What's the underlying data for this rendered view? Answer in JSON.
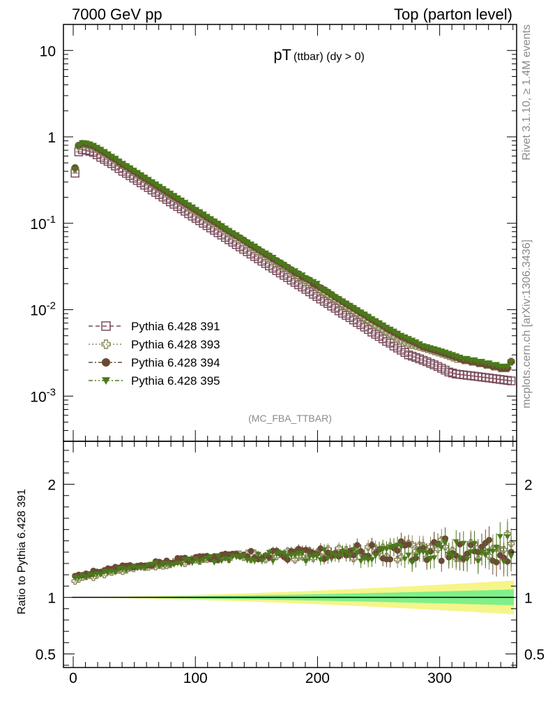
{
  "header": {
    "left": "7000 GeV pp",
    "right": "Top (parton level)"
  },
  "side_text": {
    "rivet": "Rivet 3.1.10, ≥ 1.4M events",
    "mcplots": "mcplots.cern.ch [arXiv:1306.3436]"
  },
  "chart_data": [
    {
      "type": "scatter",
      "title_main": "pT",
      "title_sub": "(ttbar) (dy > 0)",
      "analysis_label": "(MC_FBA_TTBAR)",
      "xlabel": "",
      "ylabel": "",
      "xlim": [
        -8,
        363
      ],
      "ylim": [
        0.0003,
        20
      ],
      "log_y": true,
      "y_tick_labels": [
        "10^{-3}",
        "10^{-2}",
        "10^{-1}",
        "1",
        "10"
      ],
      "legend_position": "lower-left",
      "x": [
        1.5,
        4.5,
        7.5,
        10.5,
        13.5,
        16.5,
        19.5,
        22.5,
        25.5,
        28.5,
        31.5,
        34.5,
        37.5,
        40.5,
        43.5,
        46.5,
        49.5,
        52.5,
        55.5,
        58.5,
        61.5,
        64.5,
        67.5,
        70.5,
        73.5,
        76.5,
        79.5,
        82.5,
        85.5,
        88.5,
        91.5,
        94.5,
        97.5,
        100.5,
        103.5,
        106.5,
        109.5,
        112.5,
        115.5,
        118.5,
        121.5,
        124.5,
        127.5,
        130.5,
        133.5,
        136.5,
        139.5,
        142.5,
        145.5,
        148.5,
        151.5,
        154.5,
        157.5,
        160.5,
        163.5,
        166.5,
        169.5,
        172.5,
        175.5,
        178.5,
        181.5,
        184.5,
        187.5,
        190.5,
        193.5,
        196.5,
        199.5,
        202.5,
        205.5,
        208.5,
        211.5,
        214.5,
        217.5,
        220.5,
        223.5,
        226.5,
        229.5,
        232.5,
        235.5,
        238.5,
        241.5,
        244.5,
        247.5,
        250.5,
        253.5,
        256.5,
        259.5,
        262.5,
        265.5,
        268.5,
        271.5,
        274.5,
        277.5,
        280.5,
        283.5,
        286.5,
        289.5,
        292.5,
        295.5,
        298.5,
        301.5,
        304.5,
        307.5,
        310.5,
        313.5,
        316.5,
        319.5,
        322.5,
        325.5,
        328.5,
        331.5,
        334.5,
        337.5,
        340.5,
        343.5,
        346.5,
        349.5,
        352.5,
        355.5,
        358.5
      ],
      "series": [
        {
          "name": "Pythia 6.428 391",
          "color": "#7a4a5a",
          "marker": "open-square",
          "line": "dash",
          "values": [
            0.38,
            0.67,
            0.71,
            0.7,
            0.68,
            0.66,
            0.62,
            0.58,
            0.55,
            0.52,
            0.49,
            0.46,
            0.43,
            0.4,
            0.378,
            0.355,
            0.333,
            0.313,
            0.294,
            0.276,
            0.259,
            0.243,
            0.228,
            0.214,
            0.201,
            0.189,
            0.177,
            0.166,
            0.156,
            0.147,
            0.138,
            0.129,
            0.121,
            0.114,
            0.107,
            0.1,
            0.094,
            0.0883,
            0.0829,
            0.0778,
            0.073,
            0.0686,
            0.0644,
            0.0604,
            0.0567,
            0.0533,
            0.05,
            0.0469,
            0.044,
            0.0413,
            0.0388,
            0.0364,
            0.0342,
            0.0321,
            0.0302,
            0.0283,
            0.0266,
            0.025,
            0.0235,
            0.022,
            0.0207,
            0.0194,
            0.0183,
            0.0172,
            0.0161,
            0.0151,
            0.0142,
            0.0133,
            0.0125,
            0.0118,
            0.011,
            0.0104,
            0.0097,
            0.0091,
            0.0086,
            0.0081,
            0.0076,
            0.0071,
            0.0067,
            0.0063,
            0.0059,
            0.0055,
            0.0052,
            0.0049,
            0.0046,
            0.0043,
            0.0041,
            0.0038,
            0.0036,
            0.0034,
            0.0032,
            0.003,
            0.0029,
            0.0028,
            0.0027,
            0.0026,
            0.0025,
            0.0024,
            0.0023,
            0.0022,
            0.0021,
            0.002,
            0.0019,
            0.00185,
            0.0018,
            0.00178,
            0.00176,
            0.00174,
            0.00172,
            0.0017,
            0.00168,
            0.00166,
            0.00164,
            0.00162,
            0.0016,
            0.00158,
            0.00156,
            0.00154,
            0.00152,
            0.0015
          ]
        },
        {
          "name": "Pythia 6.428 393",
          "color": "#8a8a5a",
          "marker": "open-cross",
          "line": "dot",
          "values": [
            0.43,
            0.78,
            0.82,
            0.81,
            0.79,
            0.76,
            0.72,
            0.68,
            0.64,
            0.6,
            0.57,
            0.53,
            0.5,
            0.47,
            0.44,
            0.416,
            0.391,
            0.367,
            0.345,
            0.325,
            0.306,
            0.288,
            0.27,
            0.254,
            0.239,
            0.225,
            0.211,
            0.198,
            0.186,
            0.175,
            0.165,
            0.155,
            0.146,
            0.137,
            0.128,
            0.121,
            0.113,
            0.106,
            0.1,
            0.094,
            0.088,
            0.083,
            0.078,
            0.073,
            0.069,
            0.065,
            0.061,
            0.057,
            0.054,
            0.05,
            0.047,
            0.044,
            0.042,
            0.039,
            0.037,
            0.035,
            0.033,
            0.031,
            0.029,
            0.027,
            0.026,
            0.024,
            0.023,
            0.021,
            0.02,
            0.019,
            0.018,
            0.0166,
            0.0156,
            0.0147,
            0.0138,
            0.0129,
            0.0122,
            0.0114,
            0.0107,
            0.0101,
            0.0095,
            0.0089,
            0.0084,
            0.0079,
            0.0074,
            0.007,
            0.0066,
            0.0062,
            0.0058,
            0.0055,
            0.0052,
            0.0049,
            0.0046,
            0.0044,
            0.0042,
            0.004,
            0.0039,
            0.0038,
            0.0037,
            0.0036,
            0.0035,
            0.0034,
            0.0033,
            0.0032,
            0.0031,
            0.003,
            0.0029,
            0.0028,
            0.0027,
            0.0027,
            0.0026,
            0.0026,
            0.0025,
            0.0025,
            0.0024,
            0.0024,
            0.0023,
            0.0023,
            0.0022,
            0.0022,
            0.0021,
            0.0021,
            0.0021,
            0.0025
          ]
        },
        {
          "name": "Pythia 6.428 394",
          "color": "#6b4a35",
          "marker": "filled-circle",
          "line": "dashdot",
          "values": [
            0.44,
            0.8,
            0.84,
            0.83,
            0.81,
            0.78,
            0.74,
            0.7,
            0.66,
            0.62,
            0.58,
            0.55,
            0.51,
            0.48,
            0.455,
            0.428,
            0.402,
            0.378,
            0.355,
            0.334,
            0.314,
            0.296,
            0.278,
            0.261,
            0.246,
            0.231,
            0.217,
            0.204,
            0.192,
            0.181,
            0.17,
            0.16,
            0.15,
            0.141,
            0.133,
            0.125,
            0.117,
            0.11,
            0.104,
            0.098,
            0.092,
            0.086,
            0.081,
            0.076,
            0.072,
            0.068,
            0.064,
            0.06,
            0.056,
            0.053,
            0.05,
            0.047,
            0.044,
            0.042,
            0.039,
            0.037,
            0.035,
            0.033,
            0.031,
            0.029,
            0.027,
            0.026,
            0.024,
            0.023,
            0.022,
            0.02,
            0.019,
            0.018,
            0.017,
            0.016,
            0.015,
            0.014,
            0.0132,
            0.0124,
            0.0117,
            0.011,
            0.0104,
            0.0098,
            0.0092,
            0.0087,
            0.0082,
            0.0077,
            0.0073,
            0.0069,
            0.0065,
            0.0061,
            0.0058,
            0.0055,
            0.0052,
            0.0049,
            0.0047,
            0.0045,
            0.0043,
            0.0041,
            0.0039,
            0.0037,
            0.0036,
            0.0035,
            0.0034,
            0.0033,
            0.0032,
            0.0031,
            0.003,
            0.0029,
            0.0028,
            0.0027,
            0.0026,
            0.0026,
            0.0025,
            0.0025,
            0.0024,
            0.0024,
            0.0023,
            0.0023,
            0.0022,
            0.0022,
            0.0021,
            0.0021,
            0.0021,
            0.0025
          ]
        },
        {
          "name": "Pythia 6.428 395",
          "color": "#4a7a1a",
          "marker": "filled-triangle-down",
          "line": "dashdotdot",
          "values": [
            0.42,
            0.79,
            0.85,
            0.84,
            0.82,
            0.79,
            0.75,
            0.71,
            0.67,
            0.63,
            0.59,
            0.56,
            0.52,
            0.49,
            0.46,
            0.434,
            0.408,
            0.384,
            0.361,
            0.339,
            0.319,
            0.3,
            0.282,
            0.265,
            0.25,
            0.235,
            0.221,
            0.208,
            0.195,
            0.184,
            0.173,
            0.162,
            0.153,
            0.143,
            0.135,
            0.127,
            0.119,
            0.112,
            0.105,
            0.099,
            0.093,
            0.087,
            0.082,
            0.077,
            0.073,
            0.068,
            0.064,
            0.06,
            0.057,
            0.054,
            0.05,
            0.047,
            0.045,
            0.042,
            0.04,
            0.037,
            0.035,
            0.033,
            0.031,
            0.029,
            0.028,
            0.026,
            0.025,
            0.023,
            0.022,
            0.021,
            0.02,
            0.018,
            0.017,
            0.016,
            0.015,
            0.014,
            0.0133,
            0.0125,
            0.0118,
            0.0111,
            0.0105,
            0.0099,
            0.0093,
            0.0088,
            0.0083,
            0.0078,
            0.0074,
            0.007,
            0.0066,
            0.0062,
            0.0059,
            0.0056,
            0.0053,
            0.005,
            0.0048,
            0.0046,
            0.0044,
            0.0042,
            0.004,
            0.0038,
            0.0037,
            0.0036,
            0.0035,
            0.0034,
            0.0033,
            0.0032,
            0.0031,
            0.003,
            0.0029,
            0.0028,
            0.0027,
            0.0027,
            0.0026,
            0.0026,
            0.0025,
            0.0025,
            0.0024,
            0.0024,
            0.0023,
            0.0023,
            0.0022,
            0.0022,
            0.0022,
            0.0025
          ]
        }
      ]
    },
    {
      "type": "scatter",
      "ylabel": "Ratio to Pythia 6.428 391",
      "xlim": [
        -8,
        363
      ],
      "ylim": [
        0.38,
        2.38
      ],
      "x_tick_labels": [
        "0",
        "100",
        "200",
        "300"
      ],
      "y_tick_labels": [
        "0.5",
        "1",
        "2"
      ],
      "reference_line": 1,
      "band_inner": {
        "color": "#7ff08a",
        "half_width_start": 0.002,
        "half_width_end": 0.07
      },
      "band_outer": {
        "color": "#f5f58a",
        "half_width_start": 0.003,
        "half_width_end": 0.15
      },
      "series": [
        {
          "name": "Pythia 6.428 393",
          "color": "#8a8a5a",
          "marker": "open-cross",
          "trend_start": 1.15,
          "trend_mid": 1.37,
          "trend_end": 1.45,
          "spread": 0.05
        },
        {
          "name": "Pythia 6.428 394",
          "color": "#6b4a35",
          "marker": "filled-circle",
          "trend_start": 1.19,
          "trend_mid": 1.38,
          "trend_end": 1.45,
          "spread": 0.06
        },
        {
          "name": "Pythia 6.428 395",
          "color": "#4a7a1a",
          "marker": "filled-triangle-down",
          "trend_start": 1.17,
          "trend_mid": 1.36,
          "trend_end": 1.42,
          "spread": 0.06
        }
      ]
    }
  ]
}
